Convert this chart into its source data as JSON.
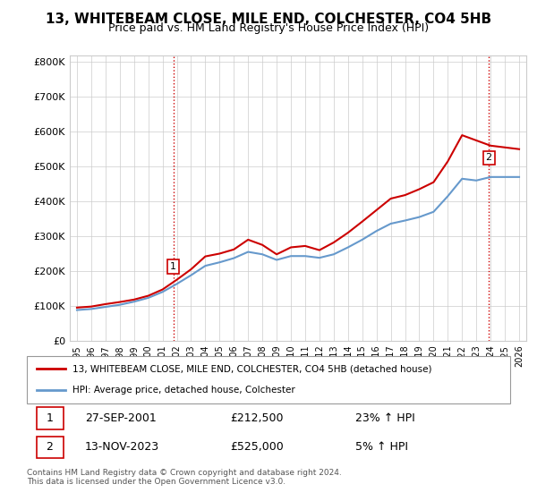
{
  "title": "13, WHITEBEAM CLOSE, MILE END, COLCHESTER, CO4 5HB",
  "subtitle": "Price paid vs. HM Land Registry's House Price Index (HPI)",
  "title_fontsize": 11,
  "subtitle_fontsize": 9,
  "ylabel": "",
  "xlabel": "",
  "ylim": [
    0,
    820000
  ],
  "yticks": [
    0,
    100000,
    200000,
    300000,
    400000,
    500000,
    600000,
    700000,
    800000
  ],
  "ytick_labels": [
    "£0",
    "£100K",
    "£200K",
    "£300K",
    "£400K",
    "£500K",
    "£600K",
    "£700K",
    "£800K"
  ],
  "x_years": [
    1995,
    1996,
    1997,
    1998,
    1999,
    2000,
    2001,
    2002,
    2003,
    2004,
    2005,
    2006,
    2007,
    2008,
    2009,
    2010,
    2011,
    2012,
    2013,
    2014,
    2015,
    2016,
    2017,
    2018,
    2019,
    2020,
    2021,
    2022,
    2023,
    2024,
    2025,
    2026
  ],
  "hpi_line_color": "#6699cc",
  "price_line_color": "#cc0000",
  "marker1_date": "27-SEP-2001",
  "marker1_price": 212500,
  "marker1_hpi_pct": "23%",
  "marker2_date": "13-NOV-2023",
  "marker2_price": 525000,
  "marker2_hpi_pct": "5%",
  "legend_label1": "13, WHITEBEAM CLOSE, MILE END, COLCHESTER, CO4 5HB (detached house)",
  "legend_label2": "HPI: Average price, detached house, Colchester",
  "footer": "Contains HM Land Registry data © Crown copyright and database right 2024.\nThis data is licensed under the Open Government Licence v3.0.",
  "background_color": "#ffffff",
  "grid_color": "#cccccc",
  "hpi_values": [
    88000,
    91000,
    97000,
    103000,
    112000,
    123000,
    140000,
    163000,
    188000,
    215000,
    225000,
    237000,
    255000,
    248000,
    232000,
    243000,
    243000,
    238000,
    248000,
    268000,
    290000,
    315000,
    336000,
    345000,
    355000,
    370000,
    415000,
    465000,
    460000,
    470000,
    470000,
    470000
  ],
  "price_values": [
    95000,
    98000,
    105000,
    111000,
    118000,
    129000,
    147000,
    175000,
    205000,
    242000,
    250000,
    262000,
    290000,
    275000,
    248000,
    268000,
    272000,
    260000,
    282000,
    310000,
    342000,
    375000,
    408000,
    418000,
    435000,
    455000,
    515000,
    590000,
    575000,
    560000,
    555000,
    550000
  ]
}
